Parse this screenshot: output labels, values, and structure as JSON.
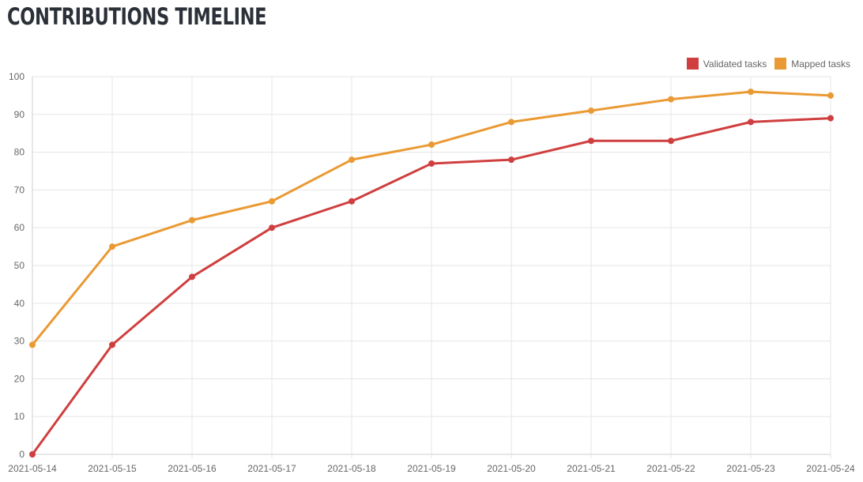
{
  "header": {
    "title": "CONTRIBUTIONS TIMELINE"
  },
  "legend": {
    "items": [
      {
        "label": "Validated tasks",
        "color": "#d03f3f"
      },
      {
        "label": "Mapped tasks",
        "color": "#ea9a34"
      }
    ]
  },
  "chart_data": {
    "type": "line",
    "title": "CONTRIBUTIONS TIMELINE",
    "xlabel": "",
    "ylabel": "",
    "legend_position": "top-right",
    "grid": true,
    "ylim": [
      0,
      100
    ],
    "yticks": [
      0,
      10,
      20,
      30,
      40,
      50,
      60,
      70,
      80,
      90,
      100
    ],
    "x": [
      "2021-05-14",
      "2021-05-15",
      "2021-05-16",
      "2021-05-17",
      "2021-05-18",
      "2021-05-19",
      "2021-05-20",
      "2021-05-21",
      "2021-05-22",
      "2021-05-23",
      "2021-05-24"
    ],
    "series": [
      {
        "name": "Validated tasks",
        "color": "#d03f3f",
        "values": [
          0,
          29,
          47,
          60,
          67,
          77,
          78,
          83,
          83,
          88,
          89
        ]
      },
      {
        "name": "Mapped tasks",
        "color": "#ea9a34",
        "values": [
          29,
          55,
          62,
          67,
          78,
          82,
          88,
          91,
          94,
          96,
          95
        ]
      }
    ]
  }
}
